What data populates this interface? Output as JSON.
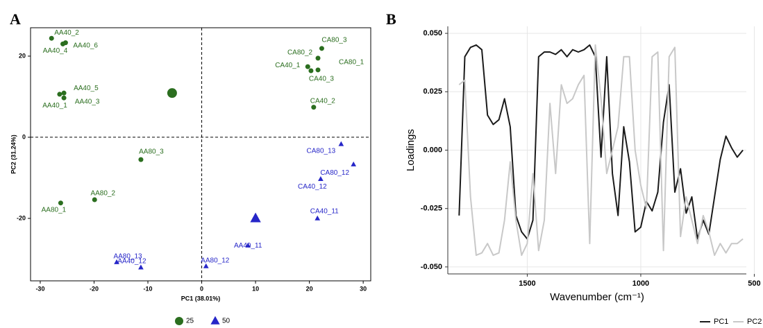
{
  "chart_data": [
    {
      "type": "scatter",
      "panel": "A",
      "xlabel": "PC1 (38.01%)",
      "ylabel": "PC2 (31.24%)",
      "xlim": [
        -31.8,
        31.4
      ],
      "ylim": [
        -35.4,
        27
      ],
      "xticks": [
        -30,
        -20,
        -10,
        0,
        10,
        20,
        30
      ],
      "yticks": [
        -20,
        0,
        20
      ],
      "series": [
        {
          "name": "25",
          "marker": "circle",
          "color": "#2b6e1f",
          "labels": [
            "AA40_2",
            "AA40_6",
            "AA40_4",
            "AA40_5",
            "AA40_3",
            "AA40_1",
            "CA80_3",
            "CA80_2",
            "CA80_1",
            "CA40_1",
            "CA40_3",
            "CA40_2",
            "AA80_3",
            "AA80_2",
            "AA80_1",
            null
          ],
          "x": [
            -27.9,
            -25.3,
            -25.8,
            -25.6,
            -26.4,
            -25.6,
            22.3,
            21.6,
            21.6,
            19.7,
            20.3,
            20.8,
            -11.3,
            -19.9,
            -26.2,
            -5.5
          ],
          "values": [
            24.4,
            23.3,
            23.0,
            10.9,
            10.6,
            9.7,
            21.9,
            16.6,
            19.5,
            17.4,
            16.4,
            7.4,
            -5.5,
            -15.4,
            -16.2,
            10.9
          ]
        },
        {
          "name": "50",
          "marker": "triangle",
          "color": "#2626c8",
          "labels": [
            "CA80_13",
            "CA80_12",
            "CA40_12",
            "CA40_11",
            "AA40_11",
            "AA80_12",
            "AA80_13",
            "AA40_12",
            null
          ],
          "x": [
            25.9,
            28.2,
            22.1,
            21.5,
            8.6,
            0.8,
            -15.8,
            -11.3,
            10.0
          ],
          "values": [
            -1.7,
            -6.7,
            -10.3,
            -20.0,
            -26.7,
            -31.8,
            -30.8,
            -32.1,
            -20.0
          ]
        }
      ]
    },
    {
      "type": "line",
      "panel": "B",
      "xlabel": "Wavenumber (cm⁻¹)",
      "ylabel": "Loadings",
      "xlim": [
        1850,
        535
      ],
      "ylim": [
        -0.053,
        0.053
      ],
      "xticks": [
        1500,
        1000,
        500
      ],
      "yticks": [
        {
          "value": 0.05,
          "label": "0.050"
        },
        {
          "value": 0.025,
          "label": "0.025"
        },
        {
          "value": 0,
          "label": "0.000"
        },
        {
          "value": -0.025,
          "label": "-0.025"
        },
        {
          "value": -0.05,
          "label": "-0.050"
        }
      ],
      "grid": true,
      "x": [
        1800,
        1775,
        1750,
        1725,
        1700,
        1675,
        1650,
        1625,
        1600,
        1575,
        1550,
        1525,
        1500,
        1475,
        1450,
        1425,
        1400,
        1375,
        1350,
        1325,
        1300,
        1275,
        1250,
        1225,
        1200,
        1175,
        1150,
        1125,
        1100,
        1075,
        1050,
        1025,
        1000,
        975,
        950,
        925,
        900,
        875,
        850,
        825,
        800,
        775,
        750,
        725,
        700,
        675,
        650,
        625,
        600,
        575,
        550
      ],
      "series": [
        {
          "name": "PC1",
          "color": "#1a1a1a",
          "values": [
            -0.028,
            0.04,
            0.044,
            0.045,
            0.043,
            0.015,
            0.011,
            0.013,
            0.022,
            0.01,
            -0.028,
            -0.035,
            -0.038,
            -0.03,
            0.04,
            0.042,
            0.042,
            0.041,
            0.043,
            0.04,
            0.043,
            0.042,
            0.043,
            0.045,
            0.04,
            -0.003,
            0.04,
            -0.01,
            -0.028,
            0.01,
            -0.005,
            -0.035,
            -0.033,
            -0.022,
            -0.026,
            -0.018,
            0.012,
            0.028,
            -0.018,
            -0.008,
            -0.027,
            -0.02,
            -0.038,
            -0.03,
            -0.036,
            -0.02,
            -0.004,
            0.006,
            0.001,
            -0.003,
            0.0
          ]
        },
        {
          "name": "PC2",
          "color": "#c8c8c8",
          "values": [
            0.028,
            0.03,
            -0.02,
            -0.045,
            -0.044,
            -0.04,
            -0.045,
            -0.044,
            -0.03,
            -0.005,
            -0.03,
            -0.045,
            -0.04,
            -0.01,
            -0.043,
            -0.03,
            0.02,
            -0.01,
            0.028,
            0.02,
            0.022,
            0.028,
            0.032,
            -0.04,
            0.045,
            0.022,
            -0.01,
            0.0,
            0.01,
            0.04,
            0.04,
            0.0,
            -0.015,
            -0.025,
            0.04,
            0.042,
            -0.043,
            0.04,
            0.044,
            -0.037,
            -0.02,
            -0.03,
            -0.04,
            -0.028,
            -0.035,
            -0.045,
            -0.04,
            -0.044,
            -0.04,
            -0.04,
            -0.038
          ]
        }
      ]
    }
  ]
}
